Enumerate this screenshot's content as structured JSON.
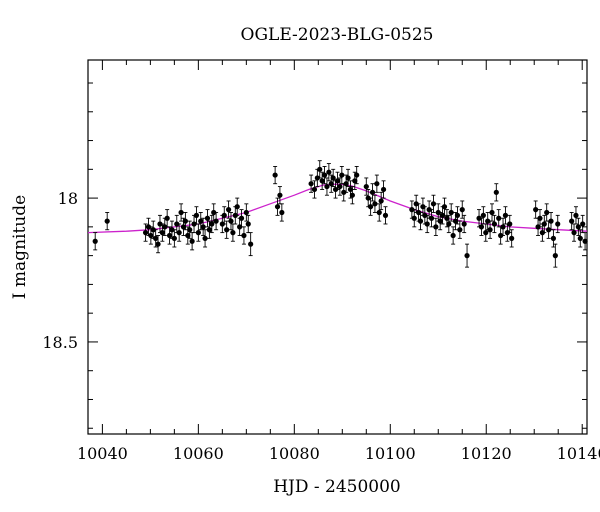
{
  "chart_data": {
    "type": "scatter",
    "title": "OGLE-2023-BLG-0525",
    "xlabel": "HJD - 2450000",
    "ylabel": "I magnitude",
    "xlim": [
      10037,
      10141
    ],
    "ylim": [
      18.82,
      17.52
    ],
    "y_inverted": true,
    "x_ticks": [
      10040,
      10060,
      10080,
      10100,
      10120,
      10140
    ],
    "x_tick_labels": [
      "10040",
      "10060",
      "10080",
      "10100",
      "10120",
      "10140"
    ],
    "y_ticks": [
      18.0,
      18.5
    ],
    "y_tick_labels": [
      "18",
      "18.5"
    ],
    "grid": false,
    "colors": {
      "points": "#000000",
      "model": "#cc22cc"
    },
    "series": [
      {
        "kind": "points_with_errorbars",
        "points": [
          [
            10038.5,
            18.15,
            0.03
          ],
          [
            10041.0,
            18.08,
            0.03
          ],
          [
            10049.0,
            18.12,
            0.03
          ],
          [
            10049.6,
            18.1,
            0.03
          ],
          [
            10050.1,
            18.13,
            0.03
          ],
          [
            10050.6,
            18.11,
            0.03
          ],
          [
            10051.1,
            18.14,
            0.03
          ],
          [
            10051.6,
            18.16,
            0.03
          ],
          [
            10052.0,
            18.09,
            0.03
          ],
          [
            10052.5,
            18.12,
            0.03
          ],
          [
            10053.0,
            18.1,
            0.03
          ],
          [
            10053.5,
            18.07,
            0.03
          ],
          [
            10054.0,
            18.13,
            0.03
          ],
          [
            10054.5,
            18.11,
            0.03
          ],
          [
            10055.0,
            18.14,
            0.03
          ],
          [
            10055.5,
            18.09,
            0.03
          ],
          [
            10056.0,
            18.12,
            0.03
          ],
          [
            10056.4,
            18.05,
            0.03
          ],
          [
            10056.9,
            18.1,
            0.03
          ],
          [
            10057.3,
            18.08,
            0.03
          ],
          [
            10057.8,
            18.13,
            0.03
          ],
          [
            10058.2,
            18.11,
            0.03
          ],
          [
            10058.7,
            18.15,
            0.03
          ],
          [
            10059.1,
            18.09,
            0.03
          ],
          [
            10059.6,
            18.06,
            0.03
          ],
          [
            10060.0,
            18.12,
            0.03
          ],
          [
            10060.5,
            18.08,
            0.03
          ],
          [
            10061.0,
            18.1,
            0.03
          ],
          [
            10061.4,
            18.14,
            0.03
          ],
          [
            10061.9,
            18.07,
            0.03
          ],
          [
            10062.3,
            18.11,
            0.03
          ],
          [
            10062.8,
            18.09,
            0.03
          ],
          [
            10063.2,
            18.05,
            0.03
          ],
          [
            10063.7,
            18.08,
            0.03
          ],
          [
            10065.0,
            18.09,
            0.03
          ],
          [
            10065.4,
            18.06,
            0.03
          ],
          [
            10065.9,
            18.11,
            0.03
          ],
          [
            10066.3,
            18.04,
            0.03
          ],
          [
            10066.8,
            18.08,
            0.03
          ],
          [
            10067.2,
            18.12,
            0.03
          ],
          [
            10067.7,
            18.06,
            0.03
          ],
          [
            10068.1,
            18.03,
            0.03
          ],
          [
            10068.6,
            18.1,
            0.03
          ],
          [
            10069.0,
            18.07,
            0.03
          ],
          [
            10069.5,
            18.13,
            0.03
          ],
          [
            10070.0,
            18.05,
            0.03
          ],
          [
            10070.4,
            18.09,
            0.03
          ],
          [
            10070.9,
            18.16,
            0.04
          ],
          [
            10076.0,
            17.92,
            0.03
          ],
          [
            10076.5,
            18.03,
            0.03
          ],
          [
            10077.0,
            17.99,
            0.03
          ],
          [
            10077.4,
            18.05,
            0.03
          ],
          [
            10083.5,
            17.95,
            0.03
          ],
          [
            10084.2,
            17.97,
            0.03
          ],
          [
            10084.8,
            17.93,
            0.03
          ],
          [
            10085.3,
            17.9,
            0.03
          ],
          [
            10085.8,
            17.94,
            0.03
          ],
          [
            10086.3,
            17.92,
            0.03
          ],
          [
            10086.8,
            17.96,
            0.03
          ],
          [
            10087.2,
            17.91,
            0.03
          ],
          [
            10087.7,
            17.95,
            0.03
          ],
          [
            10088.1,
            17.93,
            0.03
          ],
          [
            10088.6,
            17.97,
            0.03
          ],
          [
            10089.0,
            17.94,
            0.03
          ],
          [
            10089.5,
            17.96,
            0.03
          ],
          [
            10089.9,
            17.92,
            0.03
          ],
          [
            10090.3,
            17.98,
            0.03
          ],
          [
            10090.8,
            17.95,
            0.03
          ],
          [
            10091.2,
            17.93,
            0.03
          ],
          [
            10091.7,
            17.97,
            0.03
          ],
          [
            10092.1,
            17.99,
            0.03
          ],
          [
            10092.6,
            17.94,
            0.03
          ],
          [
            10093.0,
            17.92,
            0.03
          ],
          [
            10095.0,
            17.96,
            0.03
          ],
          [
            10095.4,
            18.0,
            0.03
          ],
          [
            10095.9,
            18.03,
            0.03
          ],
          [
            10096.3,
            17.98,
            0.03
          ],
          [
            10096.8,
            18.02,
            0.03
          ],
          [
            10097.2,
            17.95,
            0.03
          ],
          [
            10097.7,
            18.05,
            0.03
          ],
          [
            10098.1,
            18.01,
            0.03
          ],
          [
            10098.6,
            17.97,
            0.03
          ],
          [
            10099.0,
            18.06,
            0.03
          ],
          [
            10104.5,
            18.04,
            0.03
          ],
          [
            10105.0,
            18.07,
            0.03
          ],
          [
            10105.4,
            18.02,
            0.03
          ],
          [
            10105.9,
            18.05,
            0.03
          ],
          [
            10106.3,
            18.08,
            0.03
          ],
          [
            10106.8,
            18.03,
            0.03
          ],
          [
            10107.2,
            18.06,
            0.03
          ],
          [
            10107.7,
            18.09,
            0.03
          ],
          [
            10108.1,
            18.04,
            0.03
          ],
          [
            10108.6,
            18.07,
            0.03
          ],
          [
            10109.0,
            18.02,
            0.03
          ],
          [
            10109.5,
            18.1,
            0.03
          ],
          [
            10110.0,
            18.05,
            0.03
          ],
          [
            10110.4,
            18.08,
            0.03
          ],
          [
            10110.9,
            18.06,
            0.03
          ],
          [
            10111.3,
            18.03,
            0.03
          ],
          [
            10111.8,
            18.07,
            0.03
          ],
          [
            10112.2,
            18.09,
            0.03
          ],
          [
            10112.7,
            18.05,
            0.03
          ],
          [
            10113.1,
            18.13,
            0.03
          ],
          [
            10113.6,
            18.08,
            0.03
          ],
          [
            10114.0,
            18.06,
            0.03
          ],
          [
            10114.5,
            18.11,
            0.03
          ],
          [
            10115.0,
            18.04,
            0.03
          ],
          [
            10115.4,
            18.09,
            0.03
          ],
          [
            10116.0,
            18.2,
            0.04
          ],
          [
            10118.5,
            18.07,
            0.03
          ],
          [
            10119.0,
            18.1,
            0.03
          ],
          [
            10119.4,
            18.06,
            0.03
          ],
          [
            10119.9,
            18.12,
            0.03
          ],
          [
            10120.3,
            18.08,
            0.03
          ],
          [
            10120.8,
            18.11,
            0.03
          ],
          [
            10121.2,
            18.05,
            0.03
          ],
          [
            10121.7,
            18.09,
            0.03
          ],
          [
            10122.1,
            17.98,
            0.03
          ],
          [
            10122.6,
            18.07,
            0.03
          ],
          [
            10123.0,
            18.13,
            0.03
          ],
          [
            10123.5,
            18.1,
            0.03
          ],
          [
            10124.0,
            18.06,
            0.03
          ],
          [
            10124.4,
            18.12,
            0.03
          ],
          [
            10124.9,
            18.09,
            0.03
          ],
          [
            10125.3,
            18.14,
            0.03
          ],
          [
            10130.3,
            18.04,
            0.03
          ],
          [
            10130.8,
            18.1,
            0.03
          ],
          [
            10131.2,
            18.07,
            0.03
          ],
          [
            10131.7,
            18.12,
            0.03
          ],
          [
            10132.1,
            18.09,
            0.03
          ],
          [
            10132.6,
            18.05,
            0.03
          ],
          [
            10133.0,
            18.11,
            0.03
          ],
          [
            10133.5,
            18.08,
            0.03
          ],
          [
            10134.0,
            18.14,
            0.03
          ],
          [
            10134.4,
            18.2,
            0.04
          ],
          [
            10134.9,
            18.09,
            0.03
          ],
          [
            10137.8,
            18.08,
            0.03
          ],
          [
            10138.3,
            18.12,
            0.03
          ],
          [
            10138.7,
            18.06,
            0.03
          ],
          [
            10139.2,
            18.1,
            0.03
          ],
          [
            10139.6,
            18.14,
            0.03
          ],
          [
            10140.1,
            18.09,
            0.03
          ],
          [
            10140.6,
            18.15,
            0.03
          ]
        ]
      },
      {
        "kind": "model_line",
        "x": [
          10037,
          10045,
          10050,
          10055,
          10060,
          10065,
          10070,
          10075,
          10080,
          10083,
          10086,
          10088,
          10090,
          10092,
          10095,
          10100,
          10105,
          10110,
          10115,
          10120,
          10125,
          10130,
          10135,
          10141
        ],
        "y": [
          18.12,
          18.115,
          18.11,
          18.1,
          18.09,
          18.07,
          18.05,
          18.02,
          17.99,
          17.97,
          17.955,
          17.952,
          17.952,
          17.958,
          17.975,
          18.01,
          18.04,
          18.065,
          18.08,
          18.09,
          18.1,
          18.105,
          18.11,
          18.115
        ]
      }
    ]
  }
}
